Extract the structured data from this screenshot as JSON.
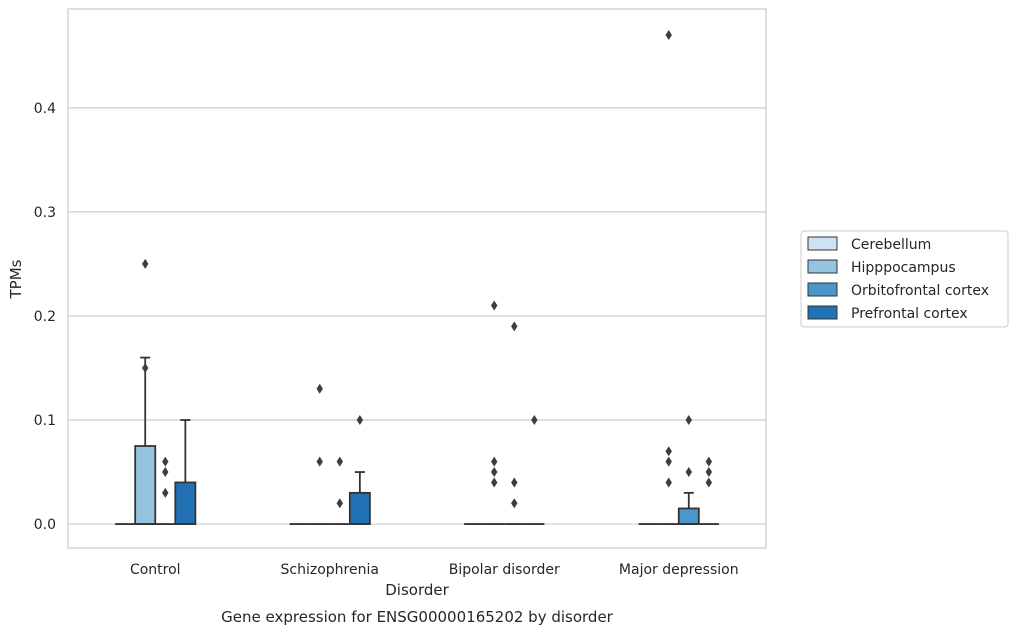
{
  "chart_data": {
    "type": "box",
    "xlabel": "Disorder",
    "ylabel": "TPMs",
    "caption": "Gene expression for ENSG00000165202 by disorder",
    "ylim": [
      -0.023,
      0.495
    ],
    "yticks": [
      "0.0",
      "0.1",
      "0.2",
      "0.3",
      "0.4"
    ],
    "yticks_values": [
      0.0,
      0.1,
      0.2,
      0.3,
      0.4
    ],
    "grid": "horizontal",
    "legend_position": "center-right",
    "categories": [
      "Control",
      "Schizophrenia",
      "Bipolar disorder",
      "Major depression"
    ],
    "series": [
      {
        "name": "Cerebellum",
        "color": "#d0e1f2",
        "boxes": [
          {
            "q1": 0,
            "median": 0,
            "q3": 0,
            "whisker_low": 0,
            "whisker_high": 0,
            "outliers": []
          },
          {
            "q1": 0,
            "median": 0,
            "q3": 0,
            "whisker_low": 0,
            "whisker_high": 0,
            "outliers": []
          },
          {
            "q1": 0,
            "median": 0,
            "q3": 0,
            "whisker_low": 0,
            "whisker_high": 0,
            "outliers": []
          },
          {
            "q1": 0,
            "median": 0,
            "q3": 0,
            "whisker_low": 0,
            "whisker_high": 0,
            "outliers": []
          }
        ]
      },
      {
        "name": "Hipppocampus",
        "color": "#94c4df",
        "boxes": [
          {
            "q1": 0,
            "median": 0,
            "q3": 0.075,
            "whisker_low": 0,
            "whisker_high": 0.16,
            "outliers": [
              0.15,
              0.25
            ]
          },
          {
            "q1": 0,
            "median": 0,
            "q3": 0,
            "whisker_low": 0,
            "whisker_high": 0,
            "outliers": [
              0.13,
              0.06
            ]
          },
          {
            "q1": 0,
            "median": 0,
            "q3": 0,
            "whisker_low": 0,
            "whisker_high": 0,
            "outliers": [
              0.05,
              0.04,
              0.06,
              0.21
            ]
          },
          {
            "q1": 0,
            "median": 0,
            "q3": 0,
            "whisker_low": 0,
            "whisker_high": 0,
            "outliers": [
              0.06,
              0.04,
              0.07,
              0.47
            ]
          }
        ]
      },
      {
        "name": "Orbitofrontal cortex",
        "color": "#4a98c9",
        "boxes": [
          {
            "q1": 0,
            "median": 0,
            "q3": 0,
            "whisker_low": 0,
            "whisker_high": 0,
            "outliers": [
              0.06,
              0.05,
              0.03
            ]
          },
          {
            "q1": 0,
            "median": 0,
            "q3": 0,
            "whisker_low": 0,
            "whisker_high": 0,
            "outliers": [
              0.06,
              0.02
            ]
          },
          {
            "q1": 0,
            "median": 0,
            "q3": 0,
            "whisker_low": 0,
            "whisker_high": 0,
            "outliers": [
              0.19,
              0.04,
              0.02
            ]
          },
          {
            "q1": 0,
            "median": 0,
            "q3": 0.015,
            "whisker_low": 0,
            "whisker_high": 0.03,
            "outliers": [
              0.1,
              0.05
            ]
          }
        ]
      },
      {
        "name": "Prefrontal cortex",
        "color": "#2171b5",
        "boxes": [
          {
            "q1": 0,
            "median": 0,
            "q3": 0.04,
            "whisker_low": 0,
            "whisker_high": 0.1,
            "outliers": []
          },
          {
            "q1": 0,
            "median": 0,
            "q3": 0.03,
            "whisker_low": 0,
            "whisker_high": 0.05,
            "outliers": [
              0.1
            ]
          },
          {
            "q1": 0,
            "median": 0,
            "q3": 0,
            "whisker_low": 0,
            "whisker_high": 0,
            "outliers": [
              0.1
            ]
          },
          {
            "q1": 0,
            "median": 0,
            "q3": 0,
            "whisker_low": 0,
            "whisker_high": 0,
            "outliers": [
              0.06,
              0.05,
              0.04
            ]
          }
        ]
      }
    ]
  }
}
